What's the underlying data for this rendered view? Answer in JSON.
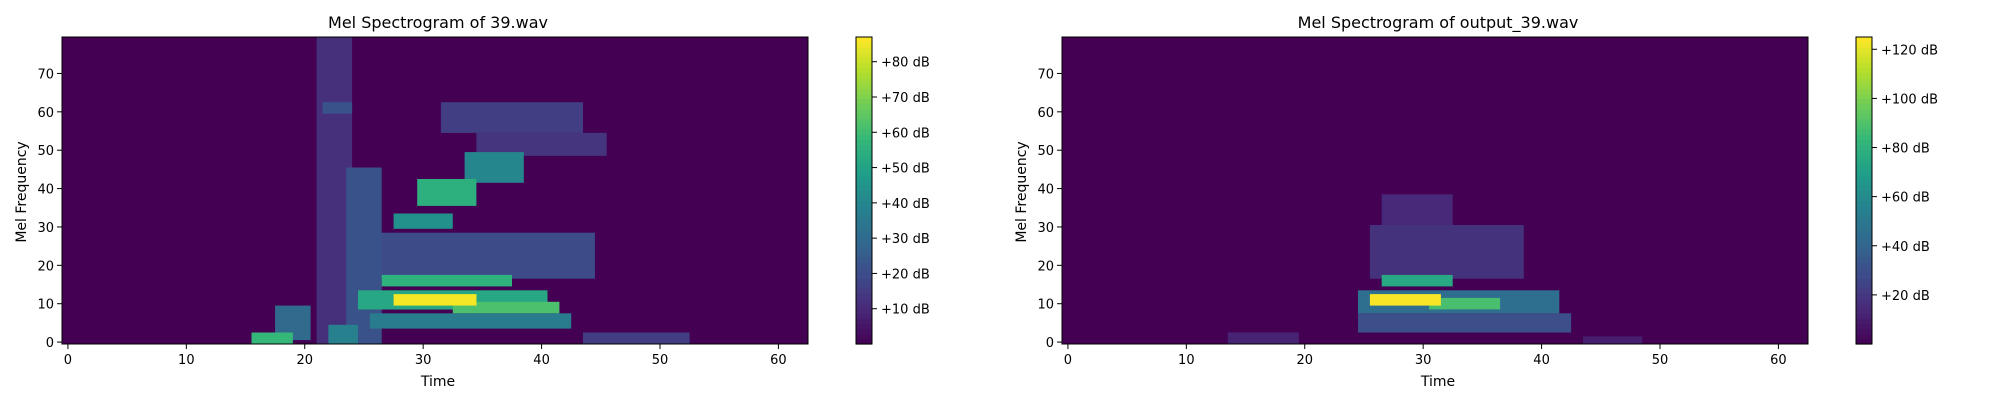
{
  "colors": {
    "axis": "#000000",
    "colormap": "viridis",
    "background_bin": "#440154"
  },
  "chart_data": [
    {
      "type": "heatmap",
      "title": "Mel Spectrogram of 39.wav",
      "xlabel": "Time",
      "ylabel": "Mel Frequency",
      "xlim": [
        -0.5,
        62.5
      ],
      "ylim": [
        -0.5,
        79.5
      ],
      "xticks": [
        0,
        10,
        20,
        30,
        40,
        50,
        60
      ],
      "yticks": [
        0,
        10,
        20,
        30,
        40,
        50,
        60,
        70
      ],
      "grid": false,
      "colorbar": {
        "vmin": 0,
        "vmax": 87,
        "ticks": [
          10,
          20,
          30,
          40,
          50,
          60,
          70,
          80
        ],
        "tick_labels": [
          "+10 dB",
          "+20 dB",
          "+30 dB",
          "+40 dB",
          "+50 dB",
          "+60 dB",
          "+70 dB",
          "+80 dB"
        ]
      },
      "blobs": [
        {
          "t": [
            21.5,
            23.5
          ],
          "f": [
            0,
            79
          ],
          "value": 12
        },
        {
          "t": [
            22,
            23.5
          ],
          "f": [
            60,
            62
          ],
          "value": 22
        },
        {
          "t": [
            16,
            18.5
          ],
          "f": [
            0,
            2
          ],
          "value": 58
        },
        {
          "t": [
            18,
            20
          ],
          "f": [
            1,
            9
          ],
          "value": 30
        },
        {
          "t": [
            22.5,
            24
          ],
          "f": [
            0,
            4
          ],
          "value": 38
        },
        {
          "t": [
            24,
            26
          ],
          "f": [
            0,
            45
          ],
          "value": 22
        },
        {
          "t": [
            25,
            40
          ],
          "f": [
            9,
            13
          ],
          "value": 52
        },
        {
          "t": [
            28,
            34
          ],
          "f": [
            10,
            12
          ],
          "value": 86
        },
        {
          "t": [
            33,
            41
          ],
          "f": [
            8,
            10
          ],
          "value": 62
        },
        {
          "t": [
            27,
            37
          ],
          "f": [
            15,
            17
          ],
          "value": 56
        },
        {
          "t": [
            26,
            42
          ],
          "f": [
            4,
            7
          ],
          "value": 36
        },
        {
          "t": [
            26,
            44
          ],
          "f": [
            17,
            28
          ],
          "value": 20
        },
        {
          "t": [
            28,
            32
          ],
          "f": [
            30,
            33
          ],
          "value": 44
        },
        {
          "t": [
            30,
            34
          ],
          "f": [
            36,
            42
          ],
          "value": 55
        },
        {
          "t": [
            34,
            38
          ],
          "f": [
            42,
            49
          ],
          "value": 40
        },
        {
          "t": [
            32,
            43
          ],
          "f": [
            55,
            62
          ],
          "value": 16
        },
        {
          "t": [
            35,
            45
          ],
          "f": [
            49,
            54
          ],
          "value": 13
        },
        {
          "t": [
            44,
            52
          ],
          "f": [
            0,
            2
          ],
          "value": 16
        }
      ]
    },
    {
      "type": "heatmap",
      "title": "Mel Spectrogram of output_39.wav",
      "xlabel": "Time",
      "ylabel": "Mel Frequency",
      "xlim": [
        -0.5,
        62.5
      ],
      "ylim": [
        -0.5,
        79.5
      ],
      "xticks": [
        0,
        10,
        20,
        30,
        40,
        50,
        60
      ],
      "yticks": [
        0,
        10,
        20,
        30,
        40,
        50,
        60,
        70
      ],
      "grid": false,
      "colorbar": {
        "vmin": 0,
        "vmax": 125,
        "ticks": [
          20,
          40,
          60,
          80,
          100,
          120
        ],
        "tick_labels": [
          "+20 dB",
          "+40 dB",
          "+60 dB",
          "+80 dB",
          "+100 dB",
          "+120 dB"
        ]
      },
      "blobs": [
        {
          "t": [
            25,
            41
          ],
          "f": [
            8,
            13
          ],
          "value": 45
        },
        {
          "t": [
            26,
            31
          ],
          "f": [
            10,
            12
          ],
          "value": 124
        },
        {
          "t": [
            31,
            36
          ],
          "f": [
            9,
            11
          ],
          "value": 88
        },
        {
          "t": [
            27,
            32
          ],
          "f": [
            15,
            17
          ],
          "value": 75
        },
        {
          "t": [
            25,
            42
          ],
          "f": [
            3,
            7
          ],
          "value": 30
        },
        {
          "t": [
            26,
            38
          ],
          "f": [
            17,
            30
          ],
          "value": 18
        },
        {
          "t": [
            27,
            32
          ],
          "f": [
            30,
            38
          ],
          "value": 14
        },
        {
          "t": [
            14,
            19
          ],
          "f": [
            0,
            2
          ],
          "value": 12
        },
        {
          "t": [
            44,
            48
          ],
          "f": [
            0,
            1
          ],
          "value": 10
        }
      ]
    }
  ]
}
